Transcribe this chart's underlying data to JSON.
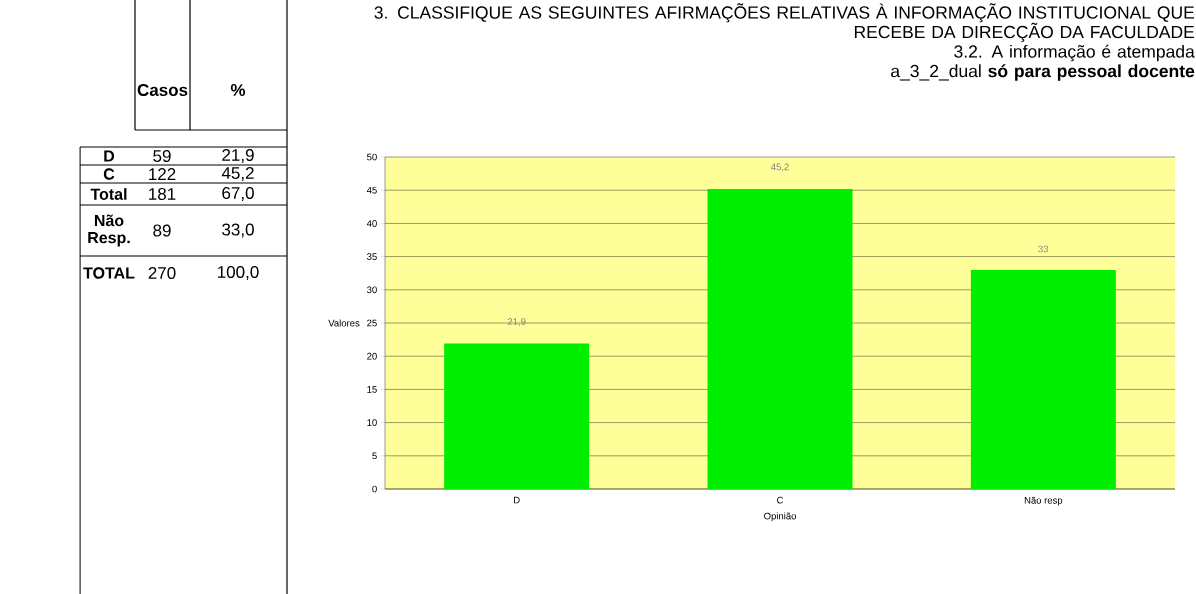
{
  "chart_data": [
    {
      "type": "other",
      "categories": [
        "D",
        "C",
        "Total",
        "Não Resp.",
        "TOTAL"
      ],
      "series": [
        {
          "name": "Casos",
          "values": [
            59,
            122,
            181,
            89,
            270
          ]
        },
        {
          "name": "%",
          "values": [
            21.9,
            45.2,
            67.0,
            33.0,
            100.0
          ],
          "value_labels": [
            "21,9",
            "45,2",
            "67,0",
            "33,0",
            "100,0"
          ]
        }
      ],
      "data_labels": true
    },
    {
      "type": "bar",
      "title": "3. CLASSIFIQUE AS SEGUINTES AFIRMAÇÕES RELATIVAS À INFORMAÇÃO INSTITUCIONAL QUE RECEBE DA DIRECÇÃO DA FACULDADE",
      "subtitle": "3.2. A informação é atempada",
      "annotations": [
        "a_3_2_dual **só para pessoal docente**"
      ],
      "xlabel": "Opinião",
      "ylabel": "Valores",
      "categories": [
        "D",
        "C",
        "Não resp"
      ],
      "values": [
        21.9,
        45.2,
        33
      ],
      "value_labels": [
        "21,9",
        "45,2",
        "33"
      ],
      "color": "#00ee00",
      "ylim": [
        0,
        50
      ],
      "yticks": [
        0,
        5,
        10,
        15,
        20,
        25,
        30,
        35,
        40,
        45,
        50
      ],
      "grid": "y"
    }
  ]
}
